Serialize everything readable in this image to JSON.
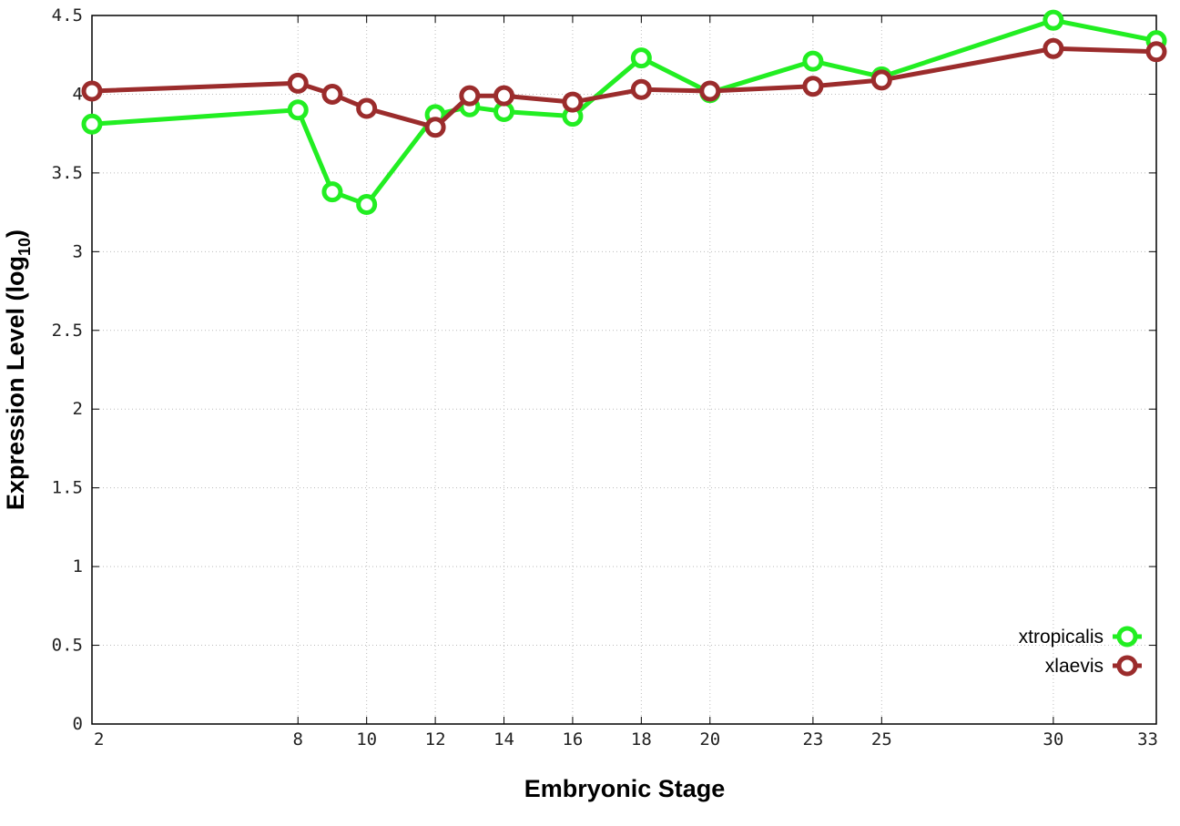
{
  "chart_data": {
    "type": "line",
    "xlabel": "Embryonic Stage",
    "ylabel": "Expression Level (log",
    "ylabel_sub": "10",
    "ylabel_close": ")",
    "x_ticks": [
      2,
      8,
      10,
      12,
      14,
      16,
      18,
      20,
      23,
      25,
      30,
      33
    ],
    "y_ticks": [
      "0",
      "0.5",
      "1",
      "1.5",
      "2",
      "2.5",
      "3",
      "3.5",
      "4",
      "4.5"
    ],
    "xlim": [
      2,
      33
    ],
    "ylim": [
      0,
      4.5
    ],
    "grid": true,
    "legend_position": "bottom-right",
    "x": [
      2,
      8,
      9,
      10,
      12,
      13,
      14,
      16,
      18,
      20,
      23,
      25,
      30,
      33
    ],
    "series": [
      {
        "name": "xtropicalis",
        "color": "#22ee22",
        "values": [
          3.81,
          3.9,
          3.38,
          3.3,
          3.87,
          3.92,
          3.89,
          3.86,
          4.23,
          4.01,
          4.21,
          4.11,
          4.47,
          4.34
        ]
      },
      {
        "name": "xlaevis",
        "color": "#9b2c2c",
        "values": [
          4.02,
          4.07,
          4.0,
          3.91,
          3.79,
          3.99,
          3.99,
          3.95,
          4.03,
          4.02,
          4.05,
          4.09,
          4.29,
          4.27
        ]
      }
    ]
  }
}
